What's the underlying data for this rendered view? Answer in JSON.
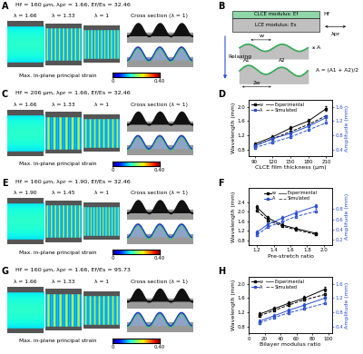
{
  "chart_data": [
    {
      "type": "line",
      "panel": "D",
      "x_label": "CLCE film thickness (μm)",
      "y_label": "Wavelength (mm)",
      "y2_label": "Amplitude (mm)",
      "x": [
        90,
        120,
        150,
        180,
        210
      ],
      "xlim": [
        80,
        220
      ],
      "xticks": [
        90,
        120,
        150,
        180,
        210
      ],
      "ylim": [
        0.6,
        2.2
      ],
      "yticks": [
        0.8,
        1.2,
        1.6,
        2.0
      ],
      "y2lim": [
        0.2,
        1.8
      ],
      "y2ticks": [
        0.4,
        0.8,
        1.2,
        1.6
      ],
      "series": [
        {
          "name": "w",
          "axis": "y",
          "color": "#000000",
          "marker": "square",
          "experimental": [
            0.95,
            1.15,
            1.4,
            1.6,
            1.95
          ],
          "error": [
            0.05,
            0.05,
            0.06,
            0.06,
            0.07
          ],
          "simulated": [
            0.9,
            1.1,
            1.3,
            1.5,
            1.75
          ]
        },
        {
          "name": "A",
          "axis": "y2",
          "color": "#2a4fd0",
          "marker": "square",
          "experimental": [
            0.5,
            0.7,
            0.85,
            1.05,
            1.3
          ],
          "error": [
            0.04,
            0.05,
            0.05,
            0.06,
            0.06
          ],
          "simulated": [
            0.45,
            0.6,
            0.75,
            0.95,
            1.15
          ]
        }
      ],
      "legend_styles": [
        {
          "label": "Experimental",
          "line_style": "solid"
        },
        {
          "label": "Simulated",
          "line_style": "dashed"
        }
      ],
      "legend": "upper left"
    },
    {
      "type": "line",
      "panel": "F",
      "x_label": "Pre-stretch ratio",
      "y_label": "Wavelength (mm)",
      "y2_label": "Amplitude (mm)",
      "x": [
        1.2,
        1.33,
        1.5,
        1.66,
        1.9
      ],
      "xlim": [
        1.1,
        2.1
      ],
      "xticks": [
        1.2,
        1.4,
        1.6,
        1.8,
        2.0
      ],
      "ylim": [
        0.6,
        3.0
      ],
      "yticks": [
        0.8,
        1.2,
        1.6,
        2.0,
        2.4
      ],
      "y2lim": [
        0.1,
        1.2
      ],
      "y2ticks": [
        0.2,
        0.4,
        0.6,
        0.8
      ],
      "series": [
        {
          "name": "w",
          "axis": "y",
          "color": "#000000",
          "marker": "square",
          "experimental": [
            2.2,
            1.75,
            1.45,
            1.3,
            1.1
          ],
          "error": [
            0.08,
            0.06,
            0.05,
            0.05,
            0.05
          ],
          "simulated": [
            2.05,
            1.65,
            1.4,
            1.25,
            1.05
          ]
        },
        {
          "name": "A",
          "axis": "y2",
          "color": "#2a4fd0",
          "marker": "square",
          "experimental": [
            0.35,
            0.5,
            0.62,
            0.72,
            0.85
          ],
          "error": [
            0.03,
            0.03,
            0.04,
            0.04,
            0.04
          ],
          "simulated": [
            0.3,
            0.45,
            0.55,
            0.65,
            0.75
          ]
        }
      ],
      "legend_styles": [
        {
          "label": "Experimental",
          "line_style": "solid"
        },
        {
          "label": "Simulated",
          "line_style": "dashed"
        }
      ],
      "legend": "upper center"
    },
    {
      "type": "line",
      "panel": "H",
      "x_label": "Bilayer modulus ratio",
      "y_label": "Wavelength (mm)",
      "y2_label": "Amplitude (mm)",
      "x": [
        14,
        32,
        50,
        70,
        96
      ],
      "xlim": [
        0,
        105
      ],
      "xticks": [
        0,
        20,
        40,
        60,
        80,
        100
      ],
      "ylim": [
        0.6,
        2.2
      ],
      "yticks": [
        0.8,
        1.2,
        1.6,
        2.0
      ],
      "y2lim": [
        0.2,
        1.8
      ],
      "y2ticks": [
        0.4,
        0.8,
        1.2,
        1.6
      ],
      "series": [
        {
          "name": "w",
          "axis": "y",
          "color": "#000000",
          "marker": "square",
          "experimental": [
            1.15,
            1.3,
            1.45,
            1.6,
            1.85
          ],
          "error": [
            0.05,
            0.05,
            0.06,
            0.06,
            0.07
          ],
          "simulated": [
            1.1,
            1.25,
            1.4,
            1.55,
            1.7
          ]
        },
        {
          "name": "A",
          "axis": "y2",
          "color": "#2a4fd0",
          "marker": "square",
          "experimental": [
            0.55,
            0.7,
            0.85,
            1.0,
            1.2
          ],
          "error": [
            0.04,
            0.05,
            0.05,
            0.05,
            0.06
          ],
          "simulated": [
            0.5,
            0.65,
            0.78,
            0.9,
            1.05
          ]
        }
      ],
      "legend_styles": [
        {
          "label": "Experimental",
          "line_style": "solid"
        },
        {
          "label": "Simulated",
          "line_style": "dashed"
        }
      ],
      "legend": "upper left"
    }
  ],
  "image_panels": [
    {
      "label": "A",
      "header": "Hf = 160 μm, λpr = 1.66, Ef/Es = 32.46",
      "lambdas": [
        "λ = 1.66",
        "λ = 1.33",
        "λ = 1"
      ],
      "cross_section": "Cross section (λ = 1)"
    },
    {
      "label": "C",
      "header": "Hf = 206 μm, λpr = 1.66, Ef/Es = 32.46",
      "lambdas": [
        "λ = 1.66",
        "λ = 1.33",
        "λ = 1"
      ],
      "cross_section": "Cross section (λ = 1)"
    },
    {
      "label": "E",
      "header": "Hf = 160 μm, λpr = 1.90, Ef/Es = 32.46",
      "lambdas": [
        "λ = 1.90",
        "λ = 1.45",
        "λ = 1"
      ],
      "cross_section": "Cross section (λ = 1)"
    },
    {
      "label": "G",
      "header": "Hf = 160 μm, λpr = 1.66, Ef/Es = 95.73",
      "lambdas": [
        "λ = 1.66",
        "λ = 1.33",
        "λ = 1"
      ],
      "cross_section": "Cross section (λ = 1)"
    }
  ],
  "strain_colorbar": {
    "label": "Max. in-plane principal strain",
    "range": [
      0,
      0.4
    ],
    "ticks": [
      0,
      {
        "value": 0.4,
        "label": "0.40"
      }
    ]
  },
  "schematic": {
    "label": "B",
    "top_layer": "CLCE modulus: Ef",
    "bottom_layer": "LCE modulus: Es",
    "thickness": "Hf",
    "prestretch": "λpr",
    "relaxing": "Relaxing",
    "wavelength": "w",
    "amplitude": "A",
    "amplitude_1": "A1",
    "amplitude_2": "A2",
    "double_wavelength": "2w",
    "formula": "A = (A1 + A2)/2"
  }
}
